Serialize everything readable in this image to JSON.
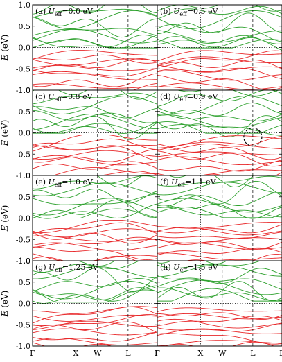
{
  "chart_data": {
    "type": "line",
    "shared": {
      "ylabel": "E (eV)",
      "ylim": [
        -1.0,
        1.0
      ],
      "yticks": [
        "1.0",
        "0.5",
        "0.0",
        "-0.5",
        "-1.0"
      ],
      "yticks_values": [
        1.0,
        0.5,
        0.0,
        -0.5,
        -1.0
      ],
      "kpath_labels": [
        "Γ",
        "X",
        "W",
        "L",
        "Γ"
      ],
      "kpath_positions": [
        0.0,
        0.347,
        0.521,
        0.766,
        1.0
      ],
      "vline_styles": [
        "solid",
        "dotted",
        "dashed",
        "dashed",
        "solid"
      ],
      "fermi_level": 0.0,
      "valence_color": "#e8282a",
      "conduction_color": "#2ca02c",
      "grid": false
    },
    "panels": [
      {
        "label": "(a)",
        "var": "U",
        "sub": "eff",
        "text": "=0.0 eV",
        "ueff": 0.0
      },
      {
        "label": "(b)",
        "var": "U",
        "sub": "eff",
        "text": "=0.5 eV",
        "ueff": 0.5
      },
      {
        "label": "(c)",
        "var": "U",
        "sub": "eff",
        "text": "=0.8 eV",
        "ueff": 0.8
      },
      {
        "label": "(d)",
        "var": "U",
        "sub": "eff",
        "text": "=0.9 eV",
        "ueff": 0.9,
        "circle": {
          "k": 0.766,
          "e": -0.1
        }
      },
      {
        "label": "(e)",
        "var": "U",
        "sub": "eff",
        "text": "=1.0 eV",
        "ueff": 1.0
      },
      {
        "label": "(f)",
        "var": "U",
        "sub": "eff",
        "text": "=1.1 eV",
        "ueff": 1.1
      },
      {
        "label": "(g)",
        "var": "U",
        "sub": "eff",
        "text": "=1.25 eV",
        "ueff": 1.25
      },
      {
        "label": "(h)",
        "var": "U",
        "sub": "eff",
        "text": "=1.5 eV",
        "ueff": 1.5
      }
    ]
  }
}
